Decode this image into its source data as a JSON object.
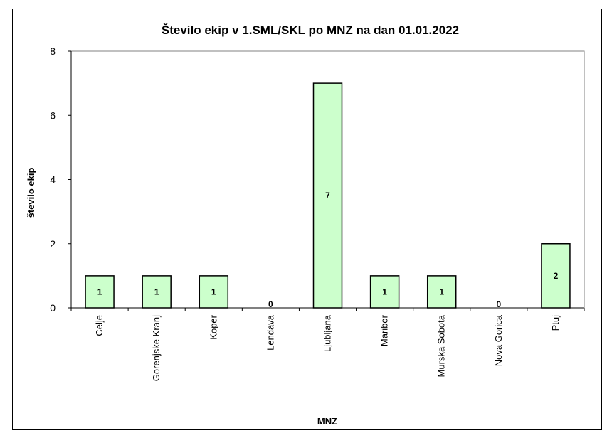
{
  "chart_data": {
    "type": "bar",
    "title": "Število ekip v 1.SML/SKL po MNZ na dan 01.01.2022",
    "xlabel": "MNZ",
    "ylabel": "število ekip",
    "categories": [
      "Celje",
      "Gorenjske Kranj",
      "Koper",
      "Lendava",
      "Ljubljana",
      "Maribor",
      "Murska Sobota",
      "Nova Gorica",
      "Ptuj"
    ],
    "values": [
      1,
      1,
      1,
      0,
      7,
      1,
      1,
      0,
      2
    ],
    "ylim": [
      0,
      8
    ],
    "yticks": [
      0,
      2,
      4,
      6,
      8
    ],
    "grid": false,
    "legend": "none",
    "bar_color": "#ccffcc",
    "bar_border_color": "#000000",
    "data_labels": true
  }
}
